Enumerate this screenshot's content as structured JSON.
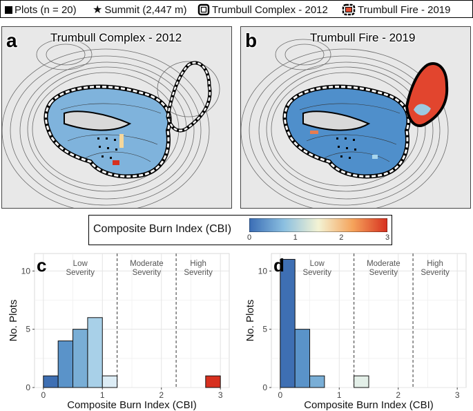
{
  "legend": {
    "plots_label": "Plots (n = 20)",
    "summit_label": "Summit (2,447 m)",
    "complex_label": "Trumbull Complex - 2012",
    "fire_label": "Trumbull Fire - 2019"
  },
  "panels": {
    "a": {
      "letter": "a",
      "title": "Trumbull Complex - 2012"
    },
    "b": {
      "letter": "b",
      "title": "Trumbull Fire - 2019"
    }
  },
  "cbi_legend": {
    "title": "Composite Burn Index (CBI)",
    "ticks": [
      "0",
      "1",
      "2",
      "3"
    ],
    "colors": [
      "#3a6db5",
      "#8bbfe0",
      "#f3f3d4",
      "#f5a35b",
      "#d7301f"
    ]
  },
  "chart_data": [
    {
      "type": "bar",
      "panel": "c",
      "x": [
        0.125,
        0.375,
        0.625,
        0.875,
        1.125,
        2.875
      ],
      "values": [
        1,
        4,
        5,
        6,
        1,
        1
      ],
      "bar_colors": [
        "#3e6fb3",
        "#5a93c9",
        "#79aed6",
        "#a8d0e8",
        "#dcecf5",
        "#d7301f"
      ],
      "xlabel": "Composite Burn Index (CBI)",
      "ylabel": "No. Plots",
      "xticks": [
        "0",
        "1",
        "2",
        "3"
      ],
      "yticks": [
        "0",
        "5",
        "10"
      ],
      "xlim": [
        -0.15,
        3.15
      ],
      "ylim": [
        0,
        11.5
      ],
      "thresholds": [
        1.25,
        2.25
      ],
      "severity_labels": [
        "Low\nSeverity",
        "Moderate\nSeverity",
        "High\nSeverity"
      ],
      "grid": true
    },
    {
      "type": "bar",
      "panel": "d",
      "x": [
        0.125,
        0.375,
        0.625,
        1.375
      ],
      "values": [
        11,
        5,
        1,
        1
      ],
      "bar_colors": [
        "#3e6fb3",
        "#5a93c9",
        "#79aed6",
        "#e3efe8"
      ],
      "xlabel": "Composite Burn Index (CBI)",
      "ylabel": "No. Plots",
      "xticks": [
        "0",
        "1",
        "2",
        "3"
      ],
      "yticks": [
        "0",
        "5",
        "10"
      ],
      "xlim": [
        -0.15,
        3.15
      ],
      "ylim": [
        0,
        11.5
      ],
      "thresholds": [
        1.25,
        2.25
      ],
      "severity_labels": [
        "Low\nSeverity",
        "Moderate\nSeverity",
        "High\nSeverity"
      ],
      "grid": true
    }
  ]
}
